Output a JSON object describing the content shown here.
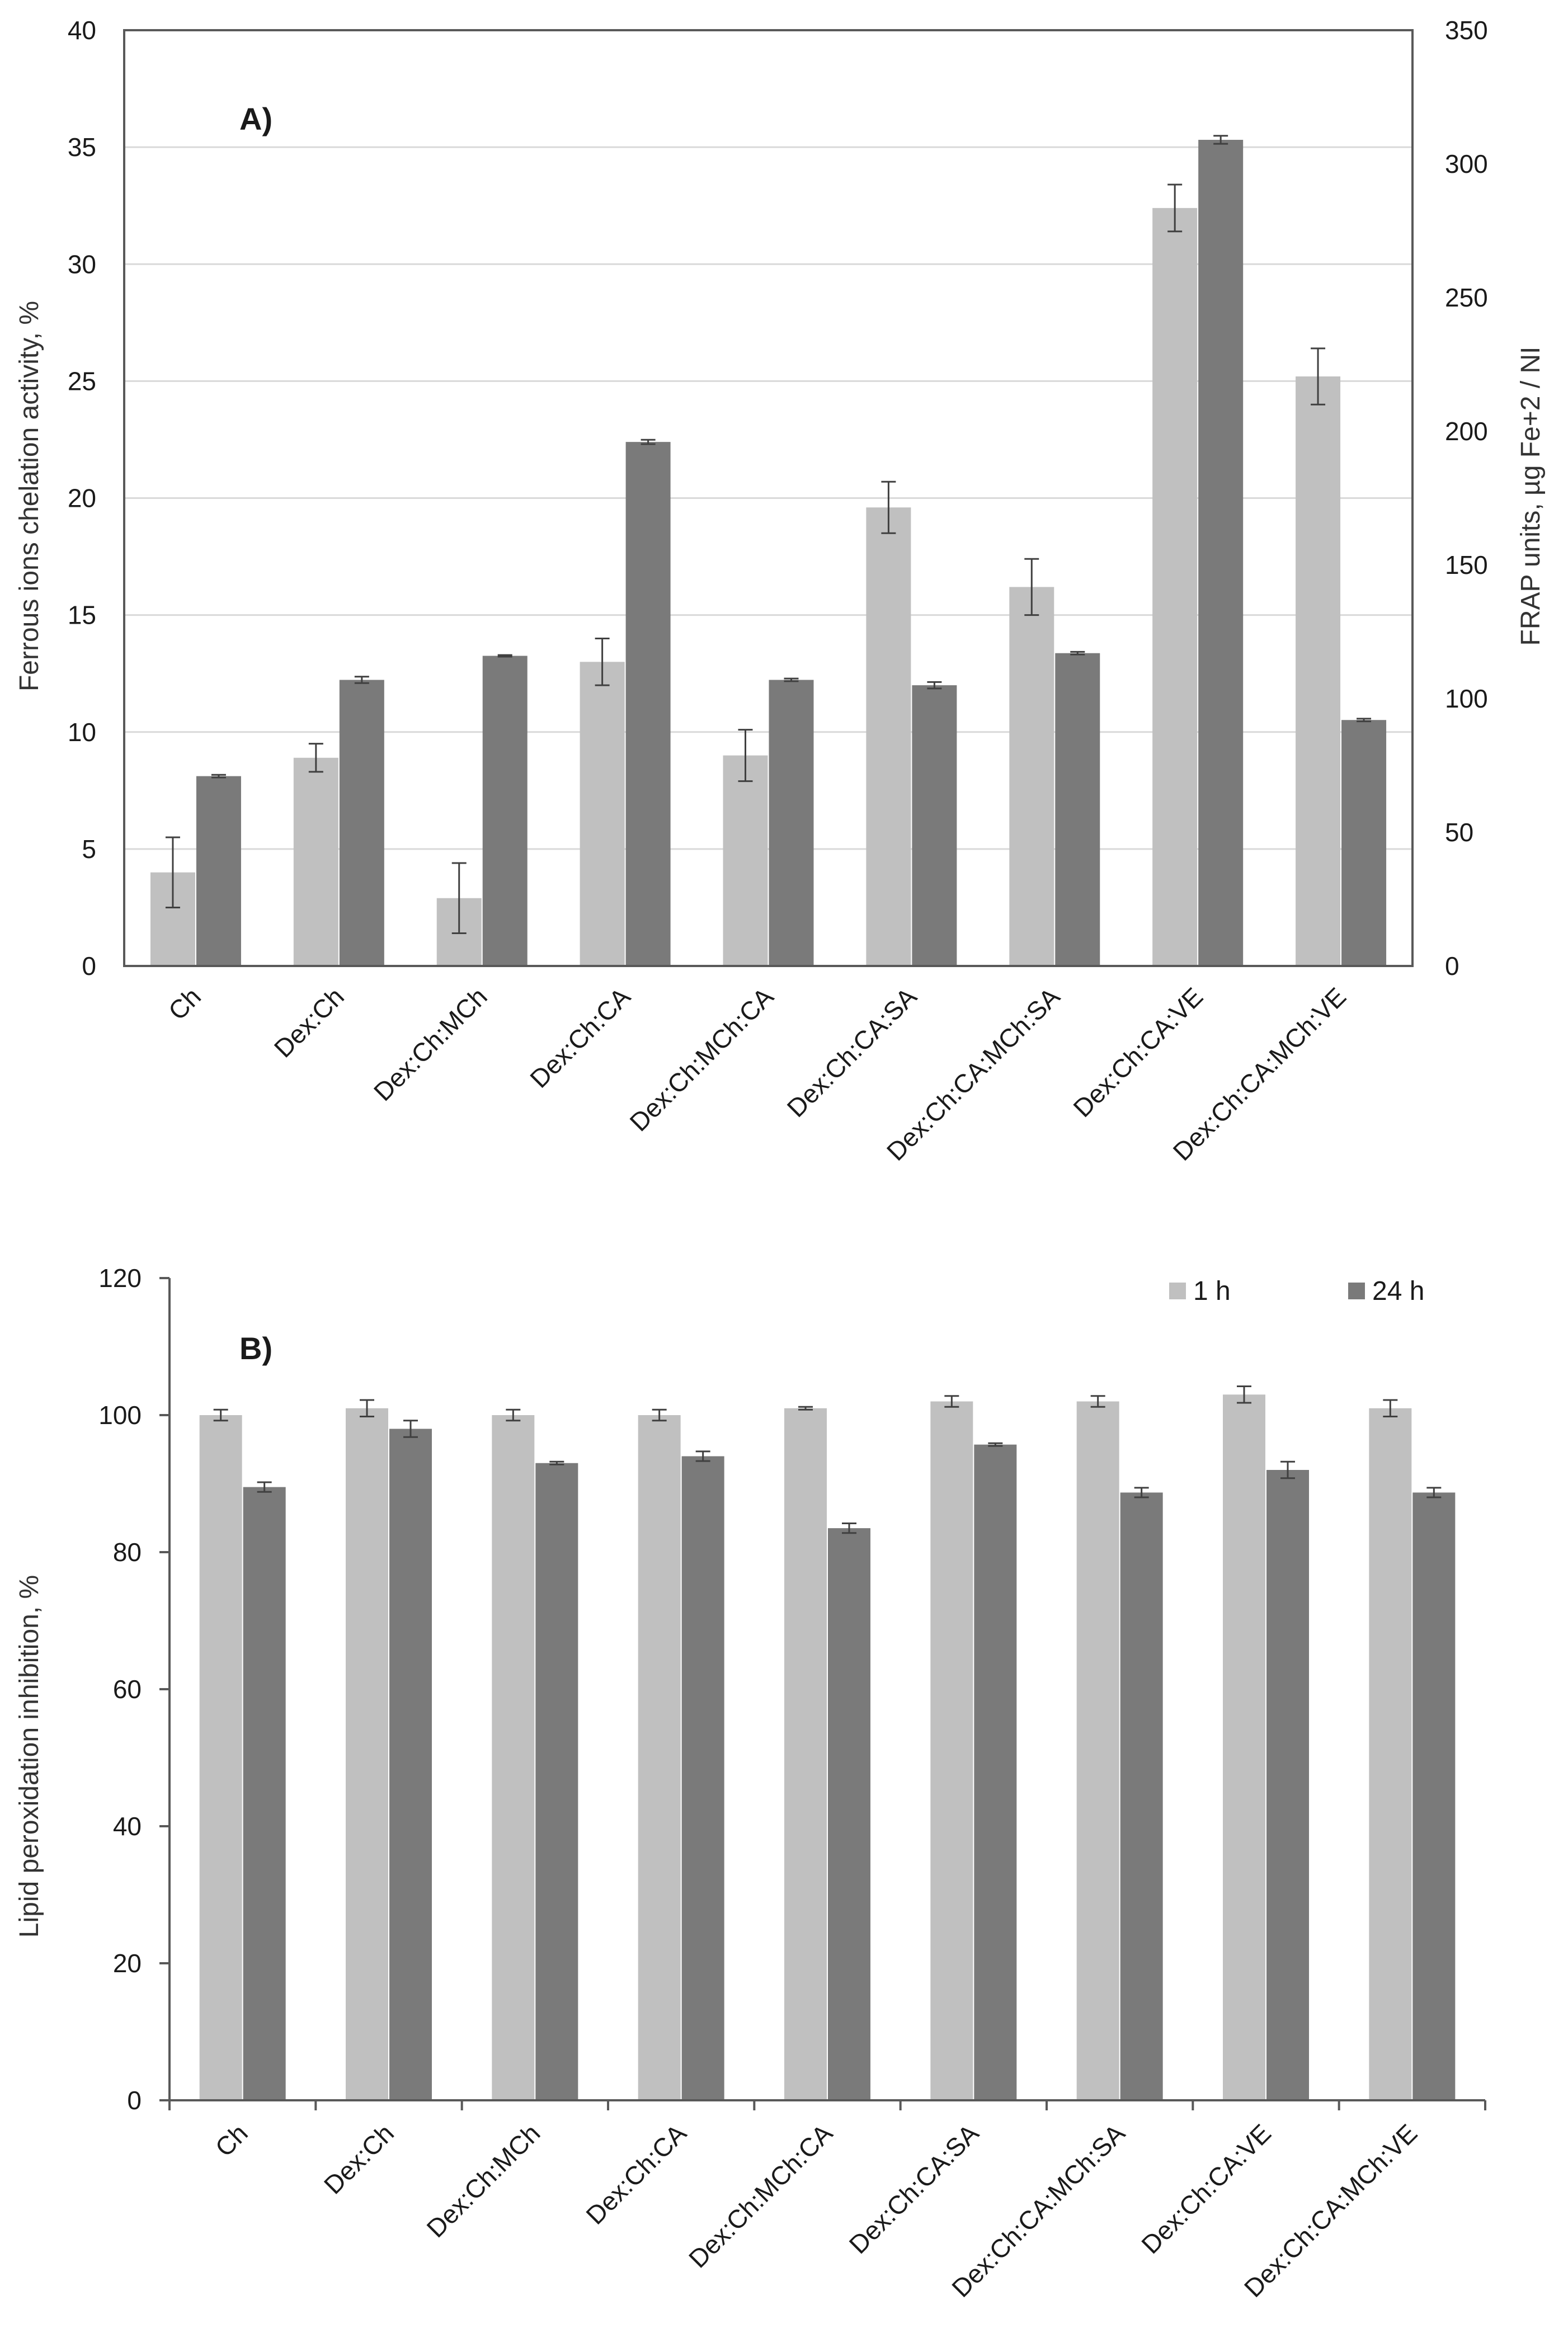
{
  "colors": {
    "light": "#c0c0c0",
    "dark": "#7a7a7a",
    "grid": "#d9d9d9",
    "frame": "#595959",
    "error": "#404040"
  },
  "legend": [
    {
      "label": "1 h",
      "color": "#c0c0c0"
    },
    {
      "label": "24 h",
      "color": "#7a7a7a"
    }
  ],
  "chart_data": [
    {
      "type": "bar",
      "panel_label": "A)",
      "categories": [
        "Ch",
        "Dex:Ch",
        "Dex:Ch:MCh",
        "Dex:Ch:CA",
        "Dex:Ch:MCh:CA",
        "Dex:Ch:CA:SA",
        "Dex:Ch:CA:MCh:SA",
        "Dex:Ch:CA:VE",
        "Dex:Ch:CA:MCh:VE"
      ],
      "ylabel": "Ferrous ions chelation activity, %",
      "y2label": "FRAP units, µg Fe+2 / NI",
      "ylim": [
        0,
        40
      ],
      "y2lim": [
        0,
        350
      ],
      "yticks": [
        "0",
        "5",
        "10",
        "15",
        "20",
        "25",
        "30",
        "35",
        "40"
      ],
      "y2ticks": [
        "0",
        "50",
        "100",
        "150",
        "200",
        "250",
        "300",
        "350"
      ],
      "grid": true,
      "series": [
        {
          "axis": "left",
          "values": [
            4.0,
            8.9,
            2.9,
            13.0,
            9.0,
            19.6,
            16.2,
            32.4,
            25.2
          ],
          "errors": [
            1.5,
            0.6,
            1.5,
            1.0,
            1.1,
            1.1,
            1.2,
            1.0,
            1.2
          ]
        },
        {
          "axis": "right",
          "values": [
            71,
            107,
            116,
            196,
            107,
            105,
            117,
            309,
            92
          ],
          "errors": [
            0.5,
            1.2,
            0.3,
            0.8,
            0.5,
            1.2,
            0.5,
            1.5,
            0.5
          ]
        }
      ]
    },
    {
      "type": "bar",
      "panel_label": "B)",
      "categories": [
        "Ch",
        "Dex:Ch",
        "Dex:Ch:MCh",
        "Dex:Ch:CA",
        "Dex:Ch:MCh:CA",
        "Dex:Ch:CA:SA",
        "Dex:Ch:CA:MCh:SA",
        "Dex:Ch:CA:VE",
        "Dex:Ch:CA:MCh:VE"
      ],
      "ylabel": "Lipid peroxidation inhibition, %",
      "ylim": [
        0,
        120
      ],
      "yticks": [
        "0",
        "20",
        "40",
        "60",
        "80",
        "100",
        "120"
      ],
      "grid": false,
      "legend_position": "top-right",
      "series": [
        {
          "name": "1 h",
          "values": [
            100,
            101,
            100,
            100,
            101,
            102,
            102,
            103,
            101
          ],
          "errors": [
            0.8,
            1.2,
            0.8,
            0.8,
            0.2,
            0.8,
            0.8,
            1.2,
            1.2
          ]
        },
        {
          "name": "24 h",
          "values": [
            89.5,
            98,
            93,
            94,
            83.5,
            95.7,
            88.7,
            92,
            88.7
          ],
          "errors": [
            0.7,
            1.2,
            0.2,
            0.7,
            0.7,
            0.2,
            0.7,
            1.2,
            0.7
          ]
        }
      ]
    }
  ]
}
